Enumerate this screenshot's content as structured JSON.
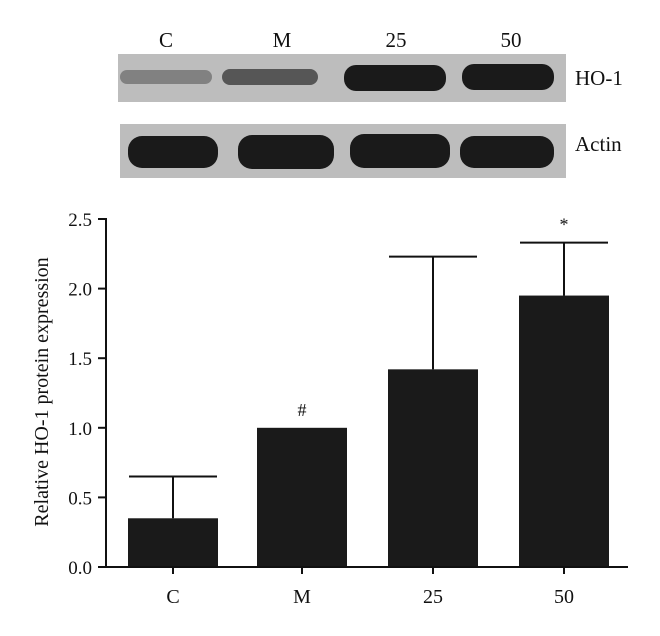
{
  "western_blot": {
    "lane_labels": [
      "C",
      "M",
      "25",
      "50"
    ],
    "rows": [
      {
        "label": "HO-1",
        "band_intensity": [
          0.35,
          0.6,
          0.95,
          0.95
        ]
      },
      {
        "label": "Actin",
        "band_intensity": [
          0.95,
          0.95,
          0.95,
          0.95
        ]
      }
    ]
  },
  "chart_data": {
    "type": "bar",
    "categories": [
      "C",
      "M",
      "25",
      "50"
    ],
    "values": [
      0.35,
      1.0,
      1.42,
      1.95
    ],
    "error_upper": [
      0.65,
      1.0,
      2.23,
      2.33
    ],
    "annotations": [
      "",
      "#",
      "",
      "*"
    ],
    "ylabel": "Relative HO-1 protein expression",
    "xlabel": "",
    "ylim": [
      0,
      2.5
    ],
    "yticks": [
      "0.0",
      "0.5",
      "1.0",
      "1.5",
      "2.0",
      "2.5"
    ],
    "bar_color": "#1a1a1a",
    "grid": false
  }
}
